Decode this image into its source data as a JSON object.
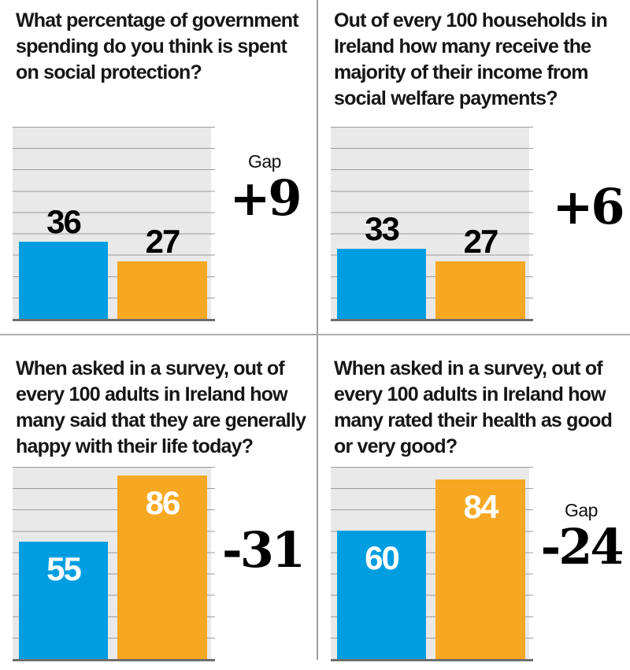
{
  "colors": {
    "perception_bar": "#009EE0",
    "reality_bar": "#F7A823",
    "plot_background": "#E9E9E9",
    "gridline": "#9C9C9C",
    "text": "#161616"
  },
  "chart_data": [
    {
      "type": "bar",
      "title": "What percentage of government spending do you think is spent on social protection?",
      "values": [
        36,
        27
      ],
      "value_labels": [
        "36",
        "27"
      ],
      "bar_colors": [
        "#009EE0",
        "#F7A823"
      ],
      "ylim": [
        0,
        90
      ],
      "grid": true,
      "gridline_step": 10,
      "value_label_position": "above",
      "annotations": {
        "gap_label": "Gap",
        "gap": "+9"
      }
    },
    {
      "type": "bar",
      "title": "Out of every 100 households in Ireland how many receive the majority of their income from social welfare payments?",
      "values": [
        33,
        27
      ],
      "value_labels": [
        "33",
        "27"
      ],
      "bar_colors": [
        "#009EE0",
        "#F7A823"
      ],
      "ylim": [
        0,
        90
      ],
      "grid": true,
      "gridline_step": 10,
      "value_label_position": "above",
      "annotations": {
        "gap": "+6"
      }
    },
    {
      "type": "bar",
      "title": "When asked in a survey, out of every 100 adults in Ireland how many said that they are generally happy with their life today?",
      "values": [
        55,
        86
      ],
      "value_labels": [
        "55",
        "86"
      ],
      "bar_colors": [
        "#009EE0",
        "#F7A823"
      ],
      "ylim": [
        0,
        90
      ],
      "grid": true,
      "gridline_step": 10,
      "value_label_position": "inside",
      "annotations": {
        "gap": "-31"
      }
    },
    {
      "type": "bar",
      "title": "When asked in a survey, out of every 100 adults in Ireland how many rated their health as good or very good?",
      "values": [
        60,
        84
      ],
      "value_labels": [
        "60",
        "84"
      ],
      "bar_colors": [
        "#009EE0",
        "#F7A823"
      ],
      "ylim": [
        0,
        90
      ],
      "grid": true,
      "gridline_step": 10,
      "value_label_position": "inside",
      "annotations": {
        "gap_label": "Gap",
        "gap": "-24"
      }
    }
  ]
}
